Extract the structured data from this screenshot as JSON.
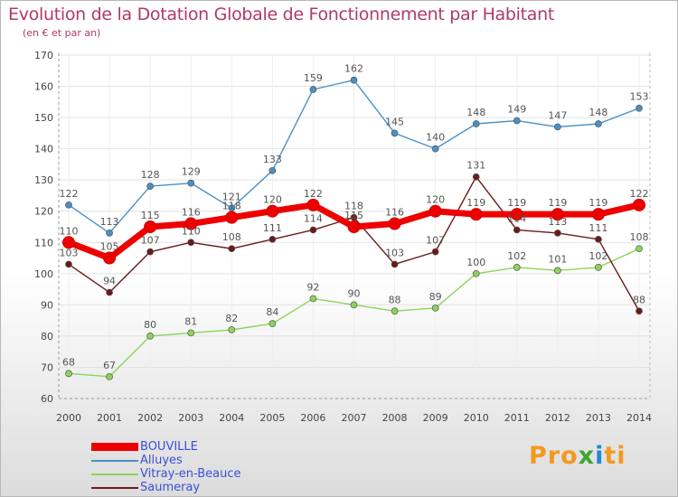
{
  "title": "Evolution de la Dotation Globale de Fonctionnement par Habitant",
  "subtitle": "(en € et par an)",
  "logo": {
    "parts": [
      "Pro",
      "x",
      "i",
      "ti"
    ],
    "colors": [
      "#f29a1f",
      "#3fa535",
      "#1e88d6",
      "#f29a1f"
    ]
  },
  "chart_data": {
    "type": "line",
    "x": [
      "2000",
      "2001",
      "2002",
      "2003",
      "2004",
      "2005",
      "2006",
      "2007",
      "2008",
      "2009",
      "2010",
      "2011",
      "2012",
      "2013",
      "2014"
    ],
    "ylim": [
      60,
      170
    ],
    "yticks": [
      60,
      70,
      80,
      90,
      100,
      110,
      120,
      130,
      140,
      150,
      160,
      170
    ],
    "grid": true,
    "legend": "bottom-left",
    "series": [
      {
        "name": "BOUVILLE",
        "color": "#ee0000",
        "values": [
          110,
          105,
          115,
          116,
          118,
          120,
          122,
          115,
          116,
          120,
          119,
          119,
          119,
          119,
          122
        ]
      },
      {
        "name": "Alluyes",
        "color": "#4a90c8",
        "values": [
          122,
          113,
          128,
          129,
          121,
          133,
          159,
          162,
          145,
          140,
          148,
          149,
          147,
          148,
          153
        ]
      },
      {
        "name": "Vitray-en-Beauce",
        "color": "#8cd45a",
        "values": [
          68,
          67,
          80,
          81,
          82,
          84,
          92,
          90,
          88,
          89,
          100,
          102,
          101,
          102,
          108
        ]
      },
      {
        "name": "Saumeray",
        "color": "#6b1a1a",
        "values": [
          103,
          94,
          107,
          110,
          108,
          111,
          114,
          118,
          103,
          107,
          131,
          114,
          113,
          111,
          88
        ]
      }
    ]
  }
}
